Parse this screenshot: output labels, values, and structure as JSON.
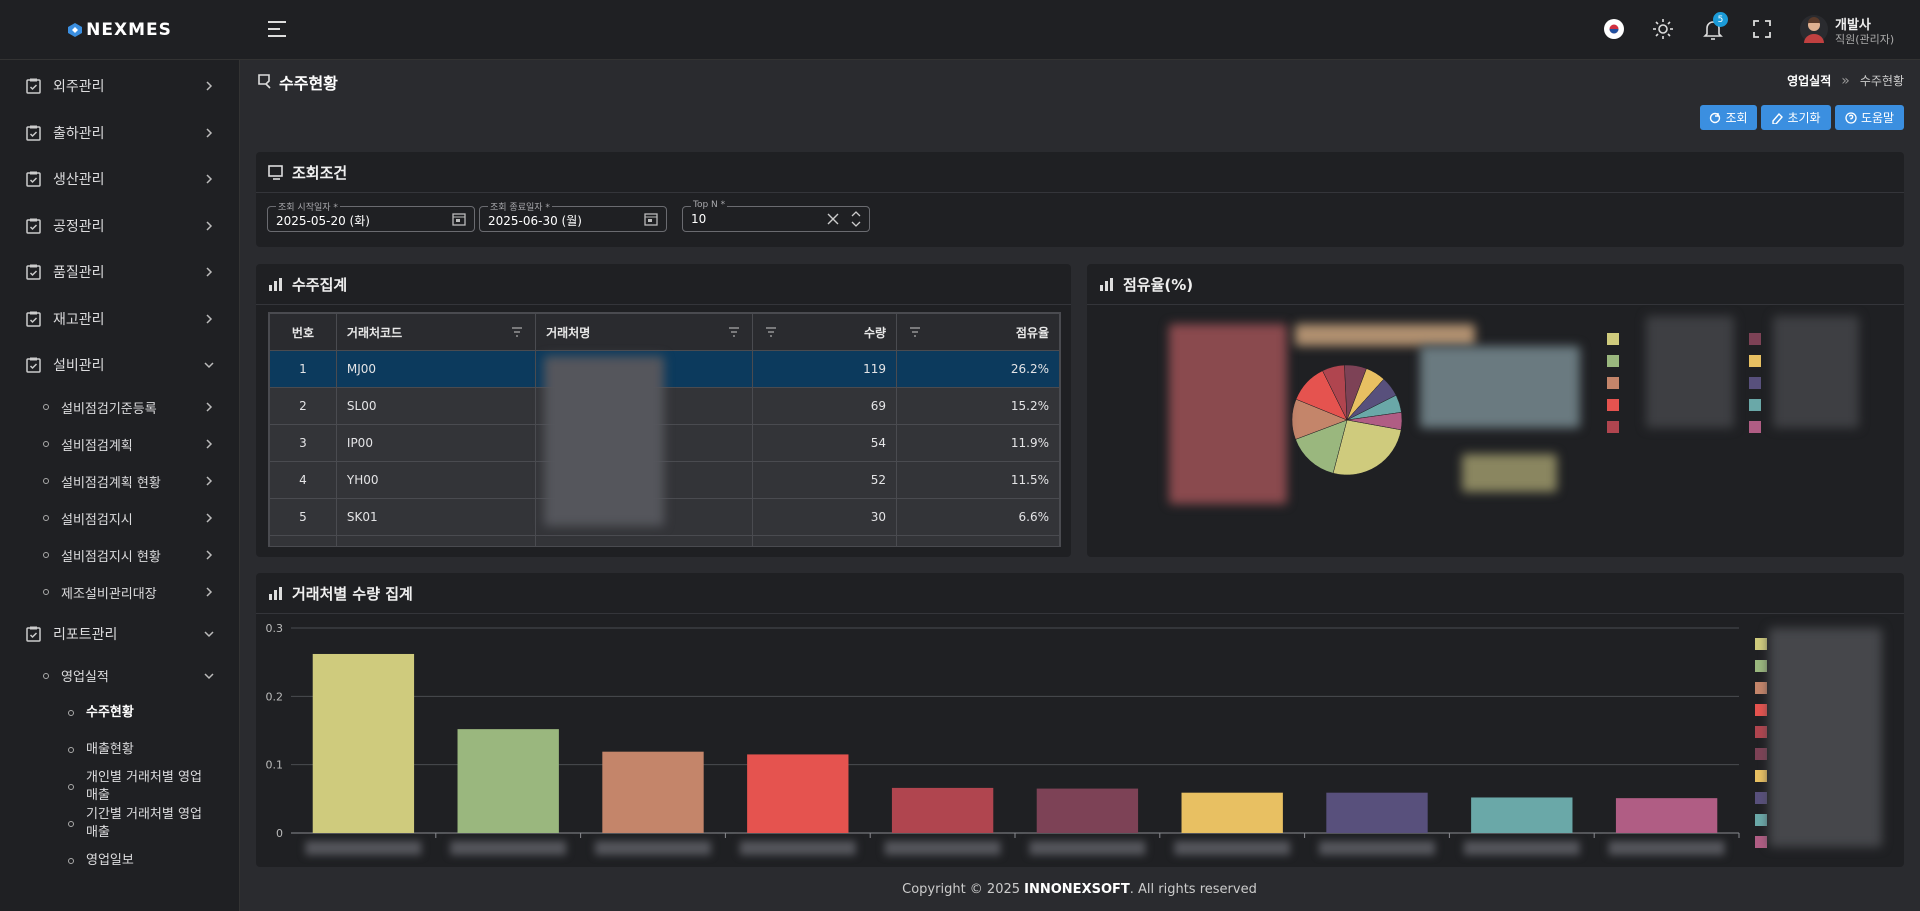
{
  "brand": "NEXMES",
  "header": {
    "user_name": "개발사",
    "user_role": "직원(관리자)",
    "notification_count": 5
  },
  "menu": [
    {
      "label": "외주관리"
    },
    {
      "label": "출하관리"
    },
    {
      "label": "생산관리"
    },
    {
      "label": "공정관리"
    },
    {
      "label": "품질관리"
    },
    {
      "label": "재고관리"
    },
    {
      "label": "설비관리",
      "children": [
        {
          "label": "설비점검기준등록"
        },
        {
          "label": "설비점검계획"
        },
        {
          "label": "설비점검계획 현황"
        },
        {
          "label": "설비점검지시"
        },
        {
          "label": "설비점검지시 현황"
        },
        {
          "label": "제조설비관리대장"
        }
      ]
    },
    {
      "label": "리포트관리",
      "children": [
        {
          "label": "영업실적",
          "children": [
            {
              "label": "수주현황",
              "active": true
            },
            {
              "label": "매출현황"
            },
            {
              "label": "개인별 거래처별 영업 매출"
            },
            {
              "label": "기간별 거래처별 영업 매출"
            },
            {
              "label": "영업일보"
            }
          ]
        }
      ]
    }
  ],
  "page": {
    "title": "수주현황",
    "breadcrumb": [
      "영업실적",
      "수주현황"
    ],
    "buttons": [
      "조회",
      "초기화",
      "도움말"
    ]
  },
  "search": {
    "title": "조회조건",
    "fields": [
      {
        "label": "조회 시작일자 *",
        "value": "2025-05-20 (화)"
      },
      {
        "label": "조회 종료일자 *",
        "value": "2025-06-30 (월)"
      },
      {
        "label": "Top N *",
        "value": "10"
      }
    ]
  },
  "summary_table": {
    "title": "수주집계",
    "columns": [
      "번호",
      "거래처코드",
      "거래처명",
      "수량",
      "점유율"
    ],
    "selected_row": 0,
    "rows": [
      {
        "no": 1,
        "code": "MJ00",
        "qty": 119,
        "share": "26.2%"
      },
      {
        "no": 2,
        "code": "SL00",
        "qty": 69,
        "share": "15.2%"
      },
      {
        "no": 3,
        "code": "IP00",
        "qty": 54,
        "share": "11.9%"
      },
      {
        "no": 4,
        "code": "YH00",
        "qty": 52,
        "share": "11.5%"
      },
      {
        "no": 5,
        "code": "SK01",
        "qty": 30,
        "share": "6.6%"
      }
    ]
  },
  "chart_data": [
    {
      "type": "pie",
      "title": "점유율(%)",
      "values": [
        26.2,
        15.2,
        11.9,
        11.5,
        6.6,
        6.5,
        5.9,
        5.9,
        5.2,
        5.1
      ],
      "colors": [
        "#cfcb7d",
        "#9ab77e",
        "#c4856a",
        "#e5534f",
        "#b0454f",
        "#7d4256",
        "#e8c062",
        "#58507c",
        "#6aa8a8",
        "#b05d84"
      ]
    },
    {
      "type": "bar",
      "title": "거래처별 수량 집계",
      "values": [
        0.262,
        0.152,
        0.119,
        0.115,
        0.066,
        0.065,
        0.059,
        0.059,
        0.052,
        0.051
      ],
      "colors": [
        "#cfcb7d",
        "#9ab77e",
        "#c4856a",
        "#e5534f",
        "#b0454f",
        "#7d4256",
        "#e8c062",
        "#58507c",
        "#6aa8a8",
        "#b05d84"
      ],
      "ylim": [
        0,
        0.3
      ],
      "yticks": [
        0,
        0.1,
        0.2,
        0.3
      ],
      "grid": true
    }
  ],
  "footer": {
    "prefix": "Copyright © 2025",
    "company": "INNONEXSOFT",
    "suffix": ". All rights reserved"
  }
}
